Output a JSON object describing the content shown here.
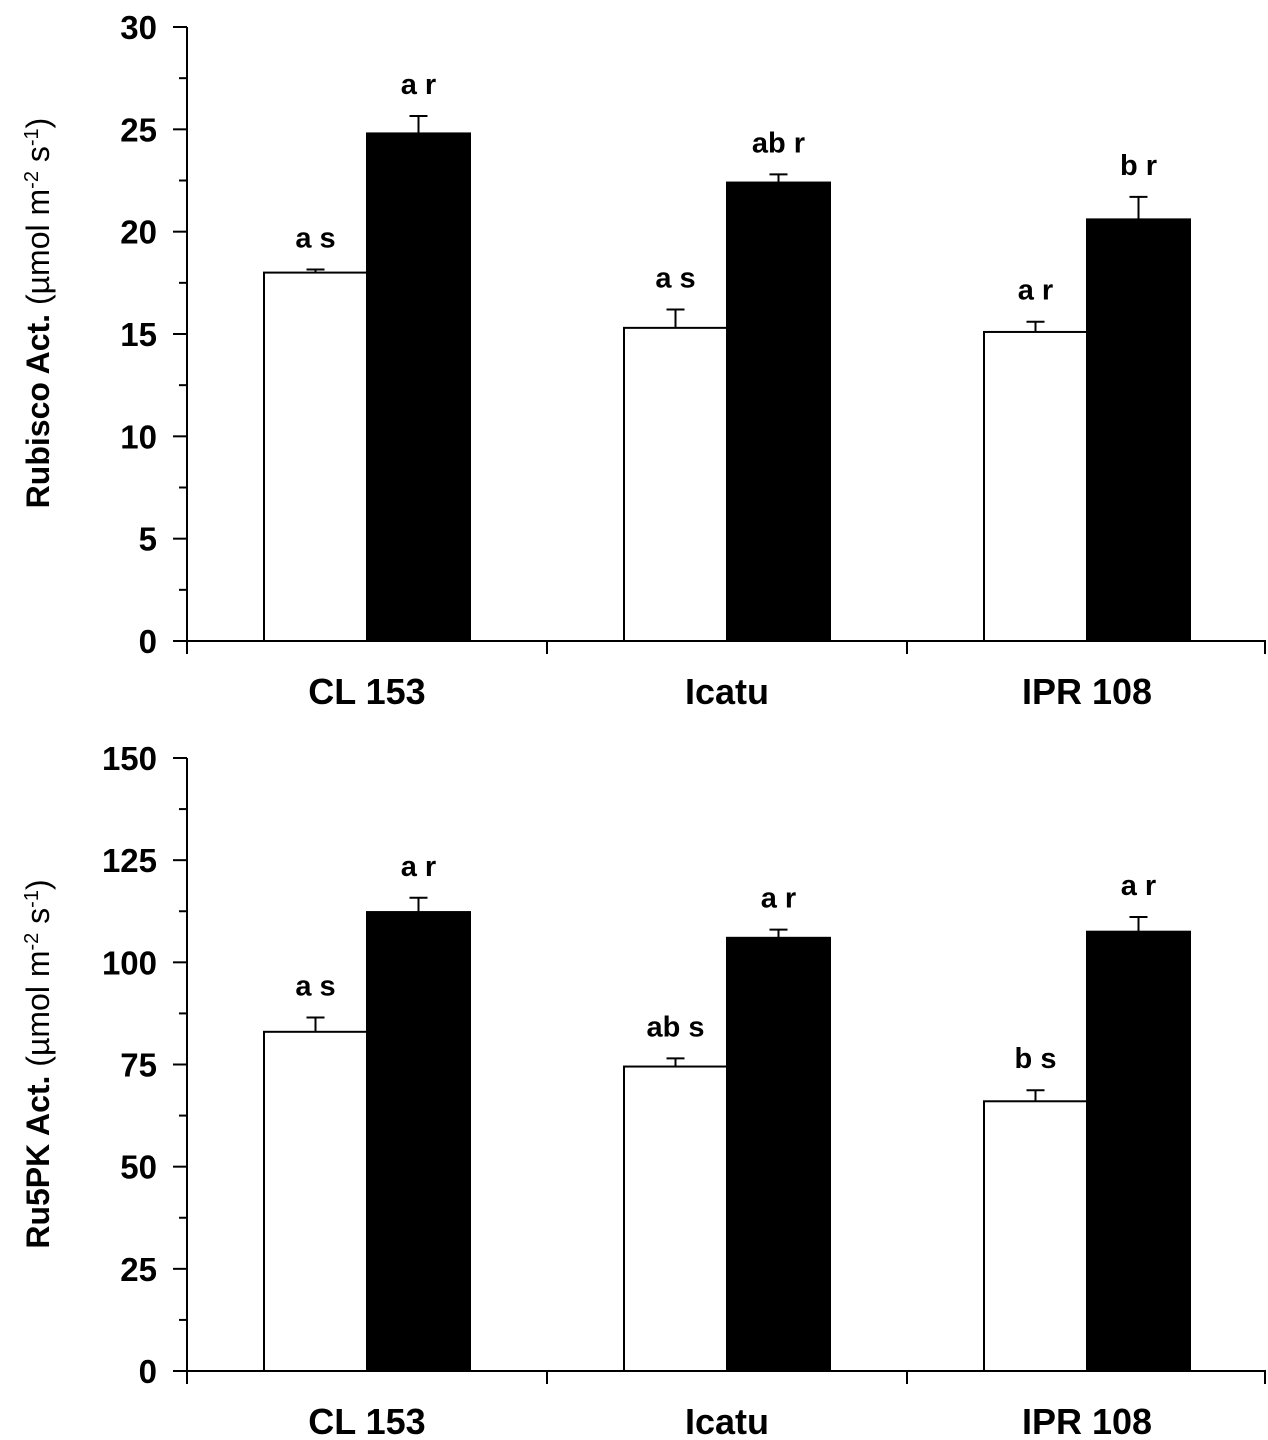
{
  "chart_data": [
    {
      "type": "bar",
      "categories": [
        "CL 153",
        "Icatu",
        "IPR 108"
      ],
      "ylabel_main": "Rubisco Act. ",
      "ylabel_unit": "(µmol m",
      "ylabel_exp1": "-2",
      "ylabel_mid": " s",
      "ylabel_exp2": "-1",
      "ylabel_close": ")",
      "ylim": [
        0,
        30
      ],
      "yticks": [
        "0",
        "5",
        "10",
        "15",
        "20",
        "25",
        "30"
      ],
      "series": [
        {
          "fill": "#ffffff",
          "values": [
            18.0,
            15.3,
            15.1
          ],
          "errors": [
            0.15,
            0.9,
            0.5
          ],
          "annotations": [
            "a s",
            "a s",
            "a r"
          ]
        },
        {
          "fill": "#000000",
          "values": [
            24.8,
            22.4,
            20.6
          ],
          "errors": [
            0.85,
            0.4,
            1.1
          ],
          "annotations": [
            "a r",
            "ab r",
            "b r"
          ]
        }
      ]
    },
    {
      "type": "bar",
      "categories": [
        "CL 153",
        "Icatu",
        "IPR 108"
      ],
      "ylabel_main": "Ru5PK  Act. ",
      "ylabel_unit": "(µmol m",
      "ylabel_exp1": "-2",
      "ylabel_mid": " s",
      "ylabel_exp2": "-1",
      "ylabel_close": ")",
      "ylim": [
        0,
        150
      ],
      "yticks": [
        "0",
        "25",
        "50",
        "75",
        "100",
        "125",
        "150"
      ],
      "series": [
        {
          "fill": "#ffffff",
          "values": [
            83.0,
            74.5,
            66.0
          ],
          "errors": [
            3.5,
            2.0,
            2.7
          ],
          "annotations": [
            "a s",
            "ab s",
            "b s"
          ]
        },
        {
          "fill": "#000000",
          "values": [
            112.3,
            106.0,
            107.5
          ],
          "errors": [
            3.5,
            2.0,
            3.6
          ],
          "annotations": [
            "a r",
            "a r",
            "a r"
          ]
        }
      ]
    }
  ]
}
